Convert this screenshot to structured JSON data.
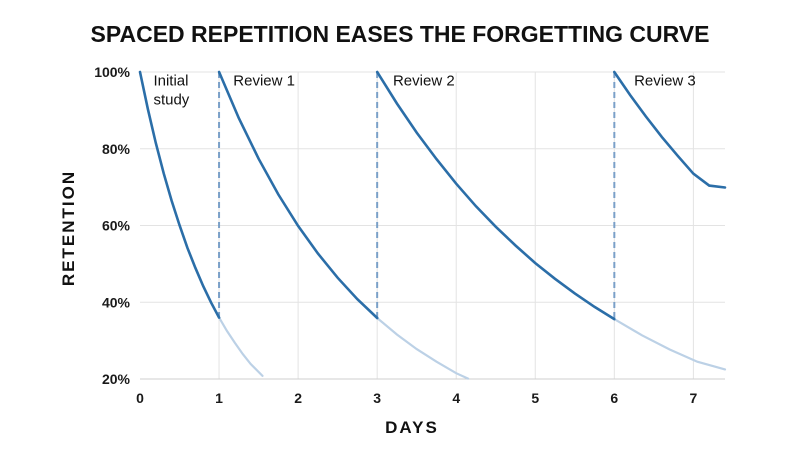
{
  "chart_data": {
    "type": "line",
    "title": "SPACED REPETITION EASES THE FORGETTING CURVE",
    "xlabel": "DAYS",
    "ylabel": "RETENTION",
    "xlim": [
      0,
      7.4
    ],
    "ylim": [
      20,
      100
    ],
    "x_ticks": [
      {
        "value": 0,
        "label": "0"
      },
      {
        "value": 1,
        "label": "1"
      },
      {
        "value": 2,
        "label": "2"
      },
      {
        "value": 3,
        "label": "3"
      },
      {
        "value": 4,
        "label": "4"
      },
      {
        "value": 5,
        "label": "5"
      },
      {
        "value": 6,
        "label": "6"
      },
      {
        "value": 7,
        "label": "7"
      }
    ],
    "y_ticks": [
      {
        "value": 20,
        "label": "20%"
      },
      {
        "value": 40,
        "label": "40%"
      },
      {
        "value": 60,
        "label": "60%"
      },
      {
        "value": 80,
        "label": "80%"
      },
      {
        "value": 100,
        "label": "100%"
      }
    ],
    "grid": true,
    "colors": {
      "primary": "#2b6ea8",
      "faded": "#bcd1e6",
      "marker": "#7aa0c8"
    },
    "series": [
      {
        "label": "Initial study",
        "active": {
          "x": [
            0,
            0.1,
            0.2,
            0.3,
            0.4,
            0.5,
            0.6,
            0.7,
            0.8,
            0.9,
            1.0
          ],
          "y": [
            100,
            90.3,
            81.5,
            73.6,
            66.5,
            60.1,
            54.2,
            49.0,
            44.2,
            39.9,
            36.0
          ]
        },
        "tail": {
          "x": [
            1.0,
            1.1,
            1.2,
            1.3,
            1.4,
            1.55
          ],
          "y": [
            36.0,
            32.5,
            29.4,
            26.5,
            23.9,
            20.8
          ]
        }
      },
      {
        "label": "Review 1",
        "active": {
          "x": [
            1.0,
            1.25,
            1.5,
            1.75,
            2.0,
            2.25,
            2.5,
            2.75,
            3.0
          ],
          "y": [
            100,
            88.0,
            77.4,
            68.1,
            59.9,
            52.7,
            46.4,
            40.8,
            35.9
          ]
        },
        "tail": {
          "x": [
            3.0,
            3.25,
            3.5,
            3.75,
            4.0,
            4.15
          ],
          "y": [
            35.9,
            31.6,
            27.8,
            24.5,
            21.5,
            20.1
          ]
        }
      },
      {
        "label": "Review 2",
        "active": {
          "x": [
            3.0,
            3.25,
            3.5,
            3.75,
            4.0,
            4.25,
            4.5,
            4.75,
            5.0,
            5.25,
            5.5,
            5.75,
            6.0
          ],
          "y": [
            100,
            91.8,
            84.2,
            77.3,
            70.9,
            65.0,
            59.7,
            54.8,
            50.2,
            46.1,
            42.3,
            38.8,
            35.6
          ]
        },
        "tail": {
          "x": [
            6.0,
            6.35,
            6.7,
            7.05,
            7.4
          ],
          "y": [
            35.6,
            31.4,
            27.7,
            24.5,
            22.5
          ]
        }
      },
      {
        "label": "Review 3",
        "active": {
          "x": [
            6.0,
            6.2,
            6.4,
            6.6,
            6.8,
            7.0,
            7.2,
            7.4
          ],
          "y": [
            100,
            94.0,
            88.4,
            83.1,
            78.2,
            73.5,
            70.4,
            69.9
          ]
        },
        "tail": {
          "x": [],
          "y": []
        }
      }
    ],
    "review_markers": [
      1,
      3,
      6
    ],
    "annotations": [
      {
        "lines": [
          "Initial",
          "study"
        ],
        "x": 0.17,
        "y": 96.5
      },
      {
        "lines": [
          "Review 1"
        ],
        "x": 1.18,
        "y": 96.5
      },
      {
        "lines": [
          "Review 2"
        ],
        "x": 3.2,
        "y": 96.5
      },
      {
        "lines": [
          "Review 3"
        ],
        "x": 6.25,
        "y": 96.5
      }
    ]
  }
}
